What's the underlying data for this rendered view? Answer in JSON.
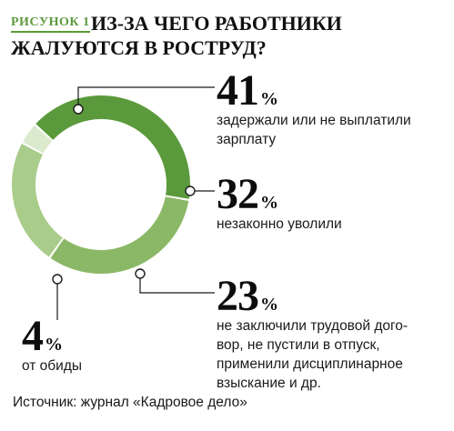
{
  "figure_label": "РИСУНОК 1",
  "title_line1": "ИЗ-ЗА ЧЕГО РАБОТНИКИ",
  "title_line2": "ЖАЛУЮТСЯ В РОСТРУД?",
  "source": "Источник: журнал «Кадровое дело»",
  "colors": {
    "accent": "#5b9a3c",
    "slice_41": "#5b9a3c",
    "slice_32": "#8bb866",
    "slice_23": "#a9cc8a",
    "slice_4": "#dbe9cd"
  },
  "chart_data": {
    "type": "pie",
    "variant": "donut",
    "title": "ИЗ-ЗА ЧЕГО РАБОТНИКИ ЖАЛУЮТСЯ В РОСТРУД?",
    "unit": "%",
    "slices": [
      {
        "value": 41,
        "value_label": "41",
        "label": "задержали или не выплатили зарплату"
      },
      {
        "value": 32,
        "value_label": "32",
        "label": "незаконно уволили"
      },
      {
        "value": 23,
        "value_label": "23",
        "label": "не заключили трудовой договор, не пустили в отпуск, применили дисциплинарное взыскание и др."
      },
      {
        "value": 4,
        "value_label": "4",
        "label": "от обиды"
      }
    ],
    "legend": "none"
  },
  "callouts": [
    {
      "num": "41",
      "pct": "%",
      "lines": [
        "задержали или не выплатили",
        "зарплату"
      ]
    },
    {
      "num": "32",
      "pct": "%",
      "lines": [
        "незаконно уволили"
      ]
    },
    {
      "num": "23",
      "pct": "%",
      "lines": [
        "не заключили трудовой дого-",
        "вор, не пустили в отпуск,",
        "применили дисциплинарное",
        "взыскание и др."
      ]
    },
    {
      "num": "4",
      "pct": "%",
      "lines": [
        "от обиды"
      ]
    }
  ]
}
